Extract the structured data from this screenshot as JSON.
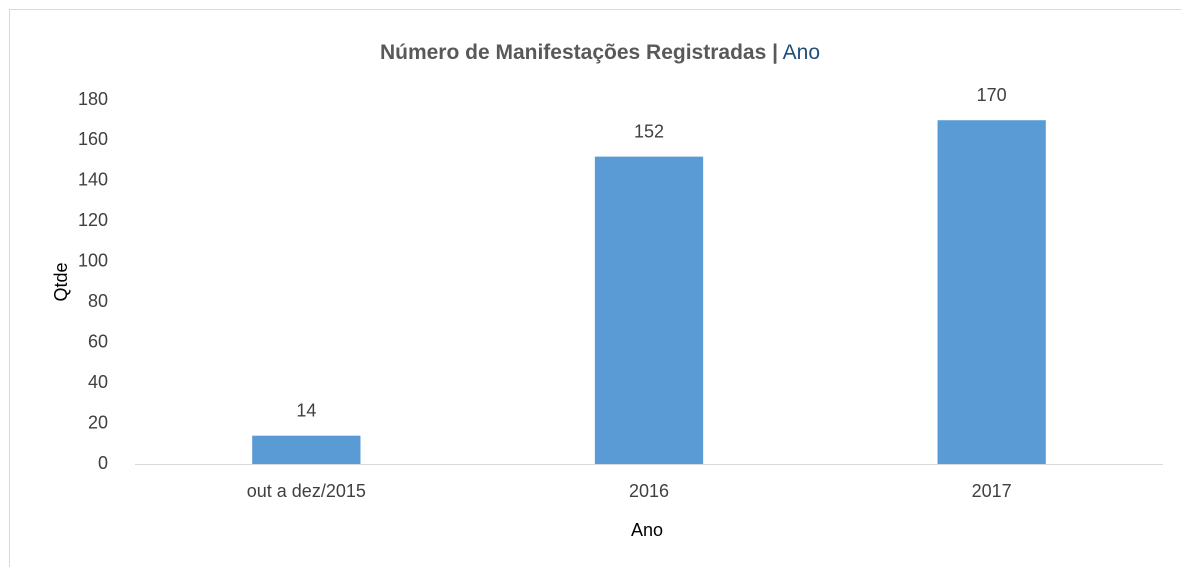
{
  "chart_data": {
    "type": "bar",
    "title": "Número de Manifestações Registradas |",
    "title_highlight": "Ano",
    "x_label": "Ano",
    "y_label": "Qtde",
    "categories": [
      "out a dez/2015",
      "2016",
      "2017"
    ],
    "values": [
      14,
      152,
      170
    ],
    "color": "#5b9bd5",
    "ylim": [
      0,
      180
    ],
    "yticks": [
      0,
      20,
      40,
      60,
      80,
      100,
      120,
      140,
      160,
      180
    ],
    "grid": false,
    "data_labels": true
  }
}
